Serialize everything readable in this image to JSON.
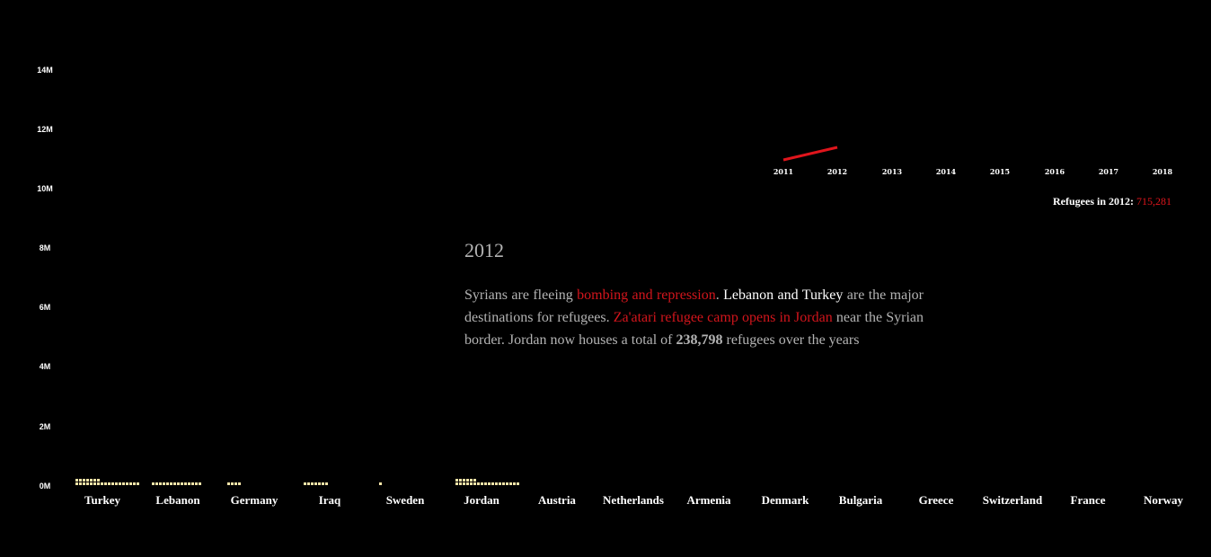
{
  "chart_data": {
    "type": "bar",
    "ytick_labels": [
      "14M",
      "12M",
      "10M",
      "8M",
      "6M",
      "4M",
      "2M",
      "0M"
    ],
    "ylim": [
      0,
      14000000
    ],
    "categories": [
      "Turkey",
      "Lebanon",
      "Germany",
      "Iraq",
      "Sweden",
      "Jordan",
      "Austria",
      "Netherlands",
      "Armenia",
      "Denmark",
      "Bulgaria",
      "Greece",
      "Switzerland",
      "France",
      "Norway"
    ],
    "values": [
      248000,
      140000,
      40000,
      70000,
      8000,
      238798,
      0,
      0,
      0,
      0,
      0,
      0,
      0,
      0,
      0
    ],
    "timeline": {
      "years": [
        "2011",
        "2012",
        "2013",
        "2014",
        "2015",
        "2016",
        "2017",
        "2018"
      ],
      "line_values": [
        4000,
        715281
      ],
      "line_color": "#e0151c"
    }
  },
  "total": {
    "label": "Refugees in 2012:",
    "value": "715,281"
  },
  "story": {
    "year": "2012",
    "p1": "Syrians are fleeing ",
    "p2": "bombing and repression",
    "p3": ". ",
    "p4": "Lebanon and Turkey",
    "p5": " are the major destinations for refugees. ",
    "p6": "Za'atari refugee camp opens in Jordan",
    "p7": " near the Syrian border. Jordan now houses a total of ",
    "p8": "238,798",
    "p9": " refugees over the years"
  },
  "colors": {
    "background": "#000000",
    "dots": "#f6e4a8",
    "accent": "#e0151c"
  }
}
